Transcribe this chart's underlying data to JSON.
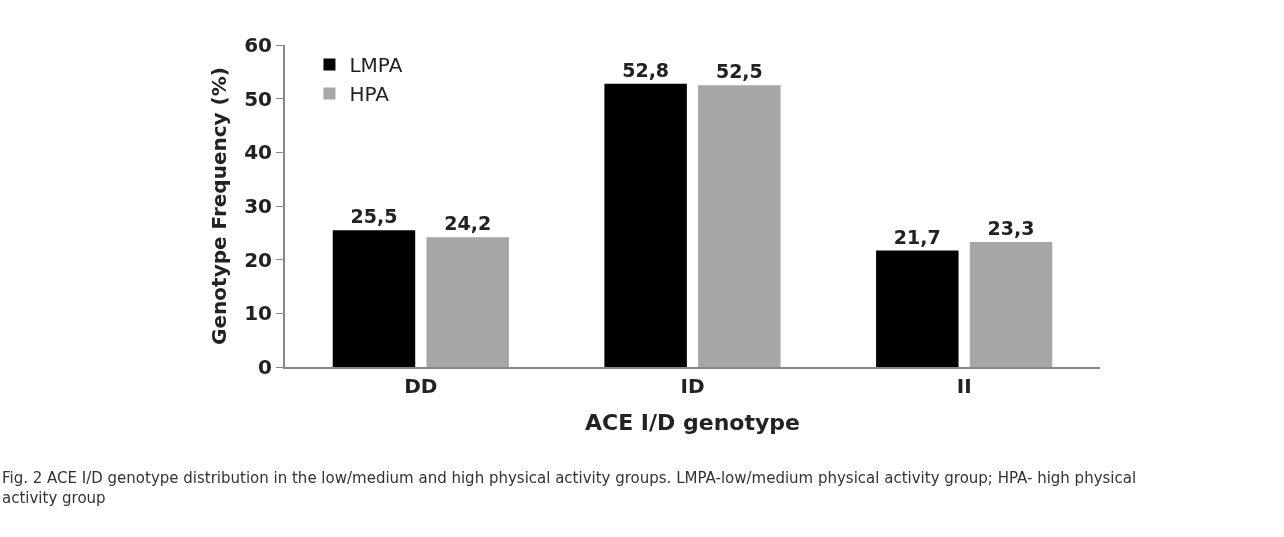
{
  "chart_data": {
    "type": "bar",
    "categories": [
      "DD",
      "ID",
      "II"
    ],
    "series": [
      {
        "name": "LMPA",
        "color": "#000000",
        "values": [
          25.5,
          52.8,
          21.7
        ],
        "value_labels": [
          "25,5",
          "52,8",
          "21,7"
        ]
      },
      {
        "name": "HPA",
        "color": "#a6a6a6",
        "values": [
          24.2,
          52.5,
          23.3
        ],
        "value_labels": [
          "24,2",
          "52,5",
          "23,3"
        ]
      }
    ],
    "xlabel": "ACE I/D genotype",
    "ylabel": "Genotype Frequency (%)",
    "ylim": [
      0,
      60
    ],
    "yticks": [
      0,
      10,
      20,
      30,
      40,
      50,
      60
    ],
    "legend": "top left",
    "annotations": [
      "Fig. 2 ACE I/D genotype distribution in the low/medium and high physical activity groups. LMPA-low/medium physical activity group; HPA- high physical activity group"
    ]
  }
}
